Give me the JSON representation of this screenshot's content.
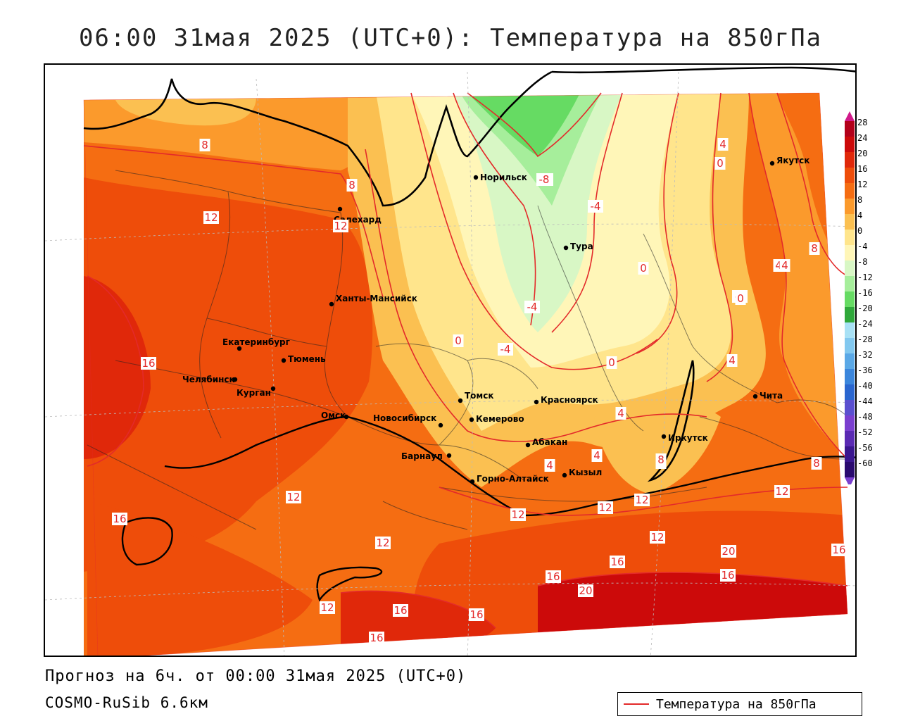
{
  "title": "06:00 31мая 2025 (UTC+0): Температура на 850гПа",
  "footer": {
    "forecast": "Прогноз на 6ч. от 00:00 31мая 2025 (UTC+0)",
    "model": "COSMO-RuSib 6.6км"
  },
  "legend": {
    "label": "Температура на 850гПа",
    "line_color": "#e32a2a"
  },
  "colorbar": {
    "ticks": [
      "28",
      "24",
      "20",
      "16",
      "12",
      "8",
      "4",
      "0",
      "-4",
      "-8",
      "-12",
      "-16",
      "-20",
      "-24",
      "-28",
      "-32",
      "-36",
      "-40",
      "-44",
      "-48",
      "-52",
      "-56",
      "-60"
    ],
    "colors": [
      "#b3001a",
      "#cc0a0a",
      "#e0280a",
      "#ee4d0a",
      "#f56d12",
      "#fb9a2c",
      "#fbc051",
      "#ffe58c",
      "#fff6b8",
      "#d8f7c5",
      "#a6ee9b",
      "#66db63",
      "#2fa83a",
      "#a8e1f5",
      "#82c8ef",
      "#5aa8e6",
      "#3b86dc",
      "#2a66cf",
      "#5a4fcf",
      "#7a3fcf",
      "#5a2ab3",
      "#3a168f",
      "#2a0a6f"
    ]
  },
  "cities": [
    {
      "name": "Норильск"
    },
    {
      "name": "Якутск"
    },
    {
      "name": "Салехард"
    },
    {
      "name": "Тура"
    },
    {
      "name": "Ханты-Мансийск"
    },
    {
      "name": "Екатеринбург"
    },
    {
      "name": "Тюмень"
    },
    {
      "name": "Челябинск"
    },
    {
      "name": "Курган"
    },
    {
      "name": "Омск"
    },
    {
      "name": "Томск"
    },
    {
      "name": "Новосибирск"
    },
    {
      "name": "Кемерово"
    },
    {
      "name": "Красноярск"
    },
    {
      "name": "Абакан"
    },
    {
      "name": "Барнаул"
    },
    {
      "name": "Горно-Алтайск"
    },
    {
      "name": "Кызыл"
    },
    {
      "name": "Иркутск"
    },
    {
      "name": "Чита"
    }
  ],
  "isotherm_labels": [
    "8",
    "4",
    "0",
    "-4",
    "-8",
    "-4",
    "-4",
    "8",
    "12",
    "12",
    "4",
    "0",
    "0",
    "-4",
    "0",
    "4",
    "4",
    "4",
    "0",
    "-4",
    "4",
    "8",
    "8",
    "12",
    "12",
    "12",
    "12",
    "16",
    "16",
    "12",
    "16",
    "16",
    "20",
    "16",
    "16",
    "16",
    "20",
    "16",
    "12",
    "8",
    "4",
    "8",
    "12",
    "12",
    "16"
  ]
}
